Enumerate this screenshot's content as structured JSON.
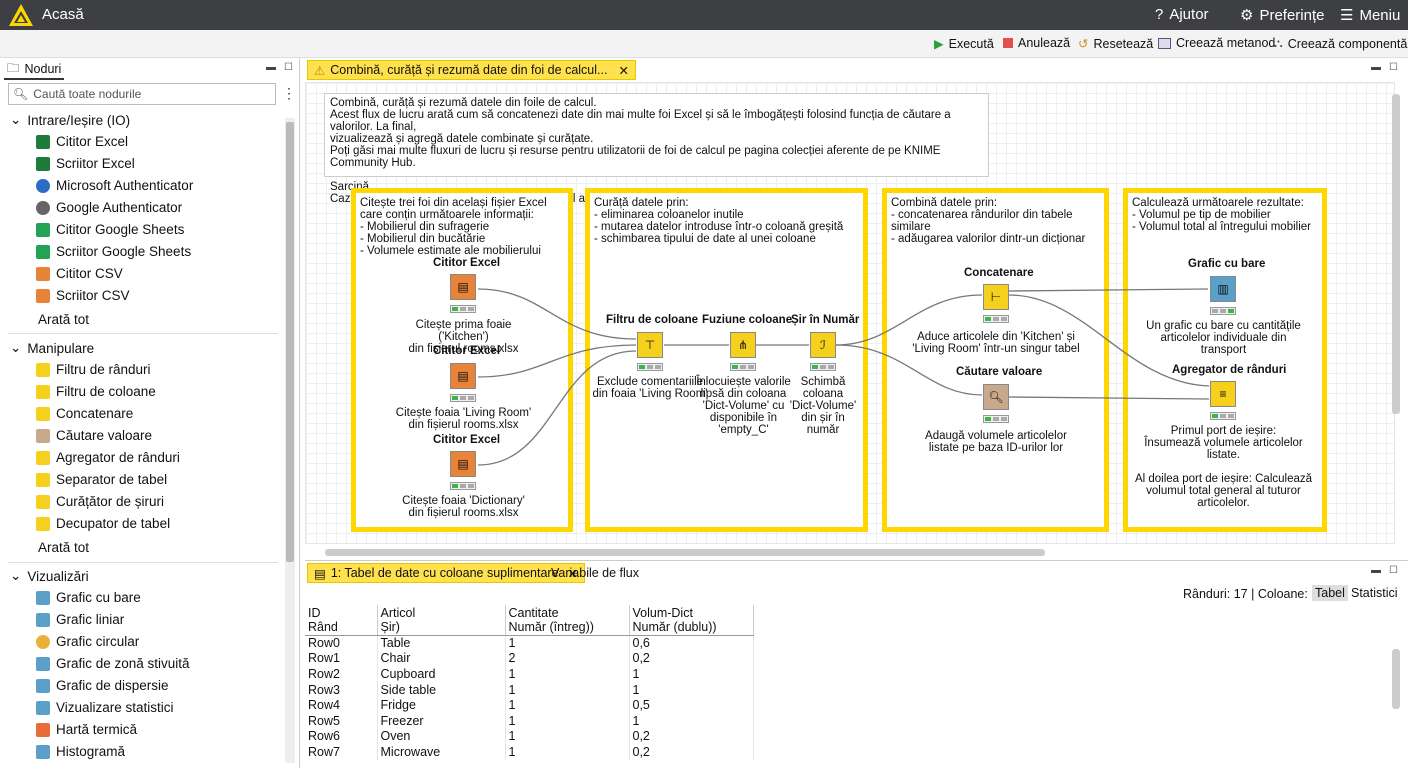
{
  "app": {
    "title": "Acasă",
    "help": "Ajutor",
    "prefs": "Preferințe",
    "menu": "Meniu"
  },
  "toolbar": {
    "execute": "Execută",
    "cancel": "Anulează",
    "reset": "Resetează",
    "metanode": "Creează metanod",
    "component": "Creează componentă"
  },
  "nodes_panel": {
    "tab": "Noduri",
    "search_placeholder": "Caută toate nodurile",
    "show_all": "Arată tot",
    "categories": [
      {
        "name": "Intrare/Ieșire (IO)",
        "items": [
          "Cititor Excel",
          "Scriitor Excel",
          "Microsoft Authenticator",
          "Google Authenticator",
          "Cititor Google Sheets",
          "Scriitor Google Sheets",
          "Cititor CSV",
          "Scriitor CSV"
        ]
      },
      {
        "name": "Manipulare",
        "items": [
          "Filtru de rânduri",
          "Filtru de coloane",
          "Concatenare",
          "Căutare valoare",
          "Agregator de rânduri",
          "Separator de tabel",
          "Curățător de șiruri",
          "Decupator de tabel"
        ]
      },
      {
        "name": "Vizualizări",
        "items": [
          "Grafic cu bare",
          "Grafic liniar",
          "Grafic circular",
          "Grafic de zonă stivuită",
          "Grafic de dispersie",
          "Vizualizare statistici",
          "Hartă termică",
          "Histogramă"
        ]
      }
    ]
  },
  "editor": {
    "tab": "Combină, curăță și rezumă date din foi de calcul...",
    "description": "Combină, curăță și rezumă datele din foile de calcul.\nAcest flux de lucru arată cum să concatenezi date din mai multe foi Excel și să le îmbogățești folosind funcția de căutare a valorilor. La final,\nvizualizează și agregă datele combinate și curățate.\nPoți găsi mai multe fluxuri de lucru și resurse pentru utilizatorii de foi de calcul pe pagina colecției aferente de pe KNIME Community Hub.\n\nSarcină.\nCazul de utilizare este calcularea volumului total al mobilierului la mutarea într-un apartament nou.",
    "annotations": [
      "Citește trei foi din același fișier Excel\ncare conțin următoarele informații:\n- Mobilierul din sufragerie\n- Mobilierul din bucătărie\n- Volumele estimate ale mobilierului",
      "Curăță datele prin:\n- eliminarea coloanelor inutile\n- mutarea datelor introduse într-o coloană greșită\n- schimbarea tipului de date al unei coloane",
      "Combină datele prin:\n- concatenarea rândurilor din tabele similare\n- adăugarea valorilor dintr-un dicționar",
      "Calculează următoarele rezultate:\n- Volumul pe tip de mobilier\n- Volumul total al întregului mobilier"
    ],
    "nodes": [
      {
        "label": "Cititor Excel",
        "desc": "Citește prima foaie ('Kitchen')\ndin fișierul rooms.xlsx"
      },
      {
        "label": "Cititor Excel",
        "desc": "Citește foaia 'Living Room'\ndin fișierul rooms.xlsx"
      },
      {
        "label": "Cititor Excel",
        "desc": "Citește foaia 'Dictionary'\ndin fișierul rooms.xlsx"
      },
      {
        "label": "Filtru de coloane",
        "desc": "Exclude comentariile\ndin foaia 'Living Room'"
      },
      {
        "label": "Fuziune coloane",
        "desc": "Înlocuiește valorile\nlipsă din coloana\n'Dict-Volume' cu\ndisponibile în\n'empty_C'"
      },
      {
        "label": "Șir în Număr",
        "desc": "Schimbă\ncoloana\n'Dict-Volume'\ndin șir în\nnumăr"
      },
      {
        "label": "Concatenare",
        "desc": "Aduce articolele din 'Kitchen' și\n'Living Room' într-un singur tabel"
      },
      {
        "label": "Căutare valoare",
        "desc": "Adaugă volumele articolelor\nlistate pe baza ID-urilor lor"
      },
      {
        "label": "Grafic cu bare",
        "desc": "Un grafic cu bare cu cantitățile\narticolelor individuale din transport"
      },
      {
        "label": "Agregator de rânduri",
        "desc": "Primul port de ieșire:\nÎnsumează volumele articolelor\nlistate.\n\nAl doilea port de ieșire: Calculează\nvolumul total general al tuturor\narticolelor."
      }
    ]
  },
  "bottom": {
    "tab1": "1: Tabel de date cu coloane suplimentare",
    "tab2": "Variabile de flux",
    "info": "Rânduri: 17 | Coloane: 3",
    "view_table": "Tabel",
    "view_stats": "Statistici",
    "headers": [
      [
        "ID",
        "Rând"
      ],
      [
        "Articol",
        "Șir)"
      ],
      [
        "Cantitate",
        "Număr (întreg))"
      ],
      [
        "Volum-Dict",
        "Număr (dublu))"
      ]
    ],
    "rows": [
      [
        "Row0",
        "Table",
        "1",
        "0,6"
      ],
      [
        "Row1",
        "Chair",
        "2",
        "0,2"
      ],
      [
        "Row2",
        "Cupboard",
        "1",
        "1"
      ],
      [
        "Row3",
        "Side table",
        "1",
        "1"
      ],
      [
        "Row4",
        "Fridge",
        "1",
        "0,5"
      ],
      [
        "Row5",
        "Freezer",
        "1",
        "1"
      ],
      [
        "Row6",
        "Oven",
        "1",
        "0,2"
      ],
      [
        "Row7",
        "Microwave",
        "1",
        "0,2"
      ]
    ]
  },
  "colors": {
    "accent": "#ffd700",
    "topbar": "#3e3f42",
    "reader": "#e8833a",
    "manip": "#f5d01c",
    "viz": "#5aa0c8",
    "lookup": "#c9a98b"
  }
}
